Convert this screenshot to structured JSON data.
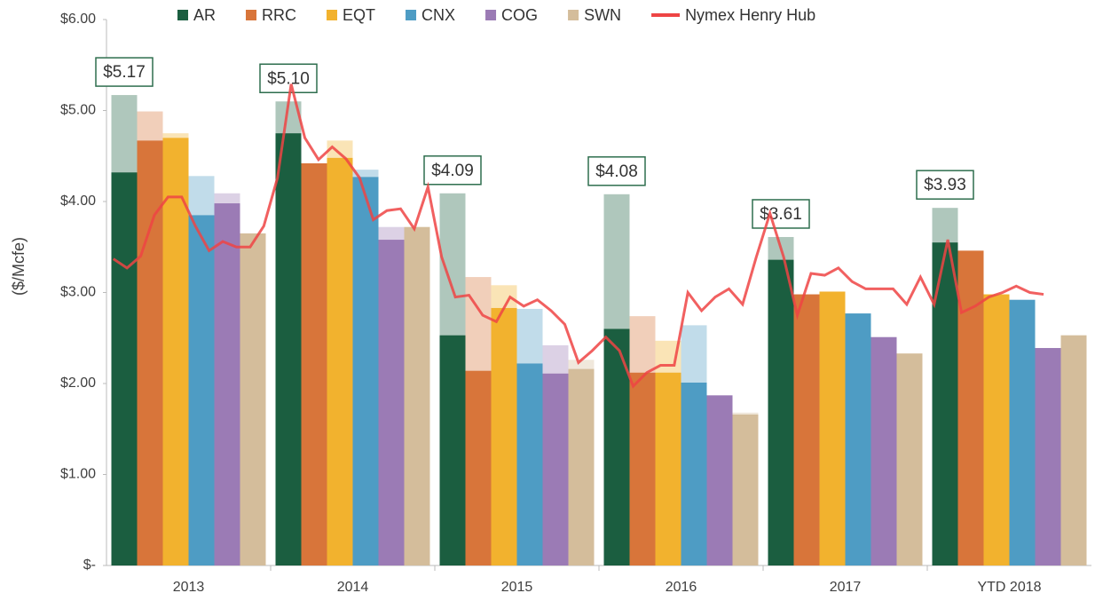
{
  "chart_data": {
    "type": "bar",
    "y_label": "($/Mcfe)",
    "categories": [
      "2013",
      "2014",
      "2015",
      "2016",
      "2017",
      "YTD 2018"
    ],
    "ylim": [
      0,
      6
    ],
    "yticks": [
      {
        "value": 0,
        "label": "$-"
      },
      {
        "value": 1,
        "label": "$1.00"
      },
      {
        "value": 2,
        "label": "$2.00"
      },
      {
        "value": 3,
        "label": "$3.00"
      },
      {
        "value": 4,
        "label": "$4.00"
      },
      {
        "value": 5,
        "label": "$5.00"
      },
      {
        "value": 6,
        "label": "$6.00"
      }
    ],
    "series": [
      {
        "name": "AR",
        "color": "#1b5e40",
        "values": [
          4.32,
          4.75,
          2.53,
          2.6,
          3.36,
          3.55
        ],
        "upper": [
          0.85,
          0.35,
          1.56,
          1.48,
          0.25,
          0.38
        ]
      },
      {
        "name": "RRC",
        "color": "#d8753a",
        "values": [
          4.67,
          4.42,
          2.14,
          2.12,
          2.98,
          3.46
        ],
        "upper": [
          0.32,
          0,
          1.03,
          0.62,
          0,
          0
        ]
      },
      {
        "name": "EQT",
        "color": "#f2b22e",
        "values": [
          4.7,
          4.48,
          2.83,
          2.12,
          3.01,
          2.98
        ],
        "upper": [
          0.05,
          0.19,
          0.25,
          0.35,
          0,
          0
        ]
      },
      {
        "name": "CNX",
        "color": "#4e9cc4",
        "values": [
          3.85,
          4.27,
          2.22,
          2.01,
          2.77,
          2.92
        ],
        "upper": [
          0.43,
          0.08,
          0.6,
          0.63,
          0,
          0
        ]
      },
      {
        "name": "COG",
        "color": "#9b7bb5",
        "values": [
          3.98,
          3.58,
          2.11,
          1.87,
          2.51,
          2.39
        ],
        "upper": [
          0.11,
          0.14,
          0.31,
          0,
          0,
          0
        ]
      },
      {
        "name": "SWN",
        "color": "#d4bd9b",
        "values": [
          3.65,
          3.72,
          2.16,
          1.66,
          2.33,
          2.53
        ],
        "upper": [
          0,
          0,
          0.1,
          0.02,
          0,
          0
        ]
      }
    ],
    "line": {
      "name": "Nymex Henry Hub",
      "color": "#ee4444",
      "values": [
        3.37,
        3.27,
        3.4,
        3.85,
        4.05,
        4.05,
        3.73,
        3.46,
        3.56,
        3.5,
        3.5,
        3.73,
        4.26,
        5.29,
        4.7,
        4.46,
        4.6,
        4.47,
        4.26,
        3.8,
        3.9,
        3.92,
        3.7,
        4.16,
        3.39,
        2.95,
        2.97,
        2.75,
        2.68,
        2.95,
        2.85,
        2.92,
        2.8,
        2.65,
        2.23,
        2.36,
        2.51,
        2.36,
        1.97,
        2.12,
        2.2,
        2.2,
        3.0,
        2.8,
        2.95,
        3.04,
        2.87,
        3.39,
        3.87,
        3.39,
        2.75,
        3.21,
        3.19,
        3.27,
        3.12,
        3.04,
        3.04,
        3.04,
        2.87,
        3.17,
        2.87,
        3.58,
        2.78,
        2.85,
        2.95,
        3.0,
        3.07,
        3.0,
        2.98
      ]
    },
    "annotations": [
      "$5.17",
      "$5.10",
      "$4.09",
      "$4.08",
      "$3.61",
      "$3.93"
    ]
  }
}
